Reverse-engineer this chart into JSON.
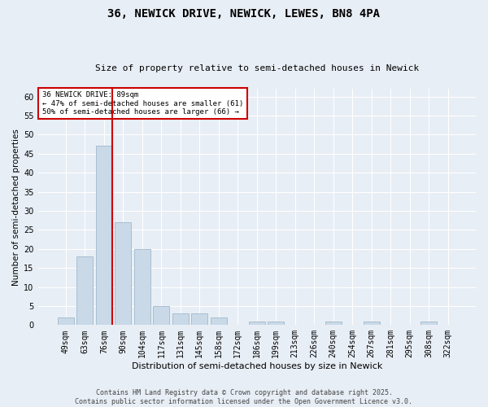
{
  "title1": "36, NEWICK DRIVE, NEWICK, LEWES, BN8 4PA",
  "title2": "Size of property relative to semi-detached houses in Newick",
  "xlabel": "Distribution of semi-detached houses by size in Newick",
  "ylabel": "Number of semi-detached properties",
  "bar_labels": [
    "49sqm",
    "63sqm",
    "76sqm",
    "90sqm",
    "104sqm",
    "117sqm",
    "131sqm",
    "145sqm",
    "158sqm",
    "172sqm",
    "186sqm",
    "199sqm",
    "213sqm",
    "226sqm",
    "240sqm",
    "254sqm",
    "267sqm",
    "281sqm",
    "295sqm",
    "308sqm",
    "322sqm"
  ],
  "bar_values": [
    2,
    18,
    47,
    27,
    20,
    5,
    3,
    3,
    2,
    0,
    1,
    1,
    0,
    0,
    1,
    0,
    1,
    0,
    0,
    1,
    0
  ],
  "bar_color": "#c9d9e8",
  "bar_edge_color": "#a0b8cc",
  "vline_index": 2,
  "vline_color": "#cc0000",
  "annotation_title": "36 NEWICK DRIVE: 89sqm",
  "annotation_line2": "← 47% of semi-detached houses are smaller (61)",
  "annotation_line3": "50% of semi-detached houses are larger (66) →",
  "annotation_box_color": "#cc0000",
  "ylim": [
    0,
    62
  ],
  "yticks": [
    0,
    5,
    10,
    15,
    20,
    25,
    30,
    35,
    40,
    45,
    50,
    55,
    60
  ],
  "footer1": "Contains HM Land Registry data © Crown copyright and database right 2025.",
  "footer2": "Contains public sector information licensed under the Open Government Licence v3.0.",
  "bg_color": "#e8eef5",
  "plot_bg_color": "#e8eef5",
  "title1_fontsize": 10,
  "title2_fontsize": 8,
  "ylabel_fontsize": 7.5,
  "xlabel_fontsize": 8,
  "tick_fontsize": 7,
  "ann_fontsize": 6.5,
  "footer_fontsize": 6
}
